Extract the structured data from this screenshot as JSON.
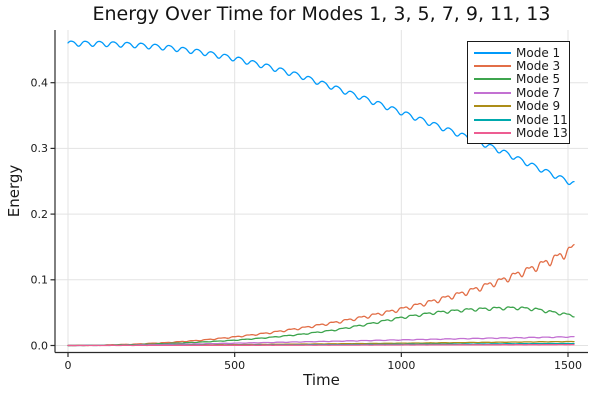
{
  "chart_data": {
    "type": "line",
    "title": "Energy Over Time for Modes 1, 3, 5, 7, 9, 11, 13",
    "xlabel": "Time",
    "ylabel": "Energy",
    "xticks": [
      0,
      500,
      1000,
      1500
    ],
    "xtick_labels": [
      "0",
      "500",
      "1000",
      "1500"
    ],
    "yticks": [
      0.0,
      0.1,
      0.2,
      0.3,
      0.4
    ],
    "ytick_labels": [
      "0.0",
      "0.1",
      "0.2",
      "0.3",
      "0.4"
    ],
    "xlim": [
      -40,
      1560
    ],
    "ylim": [
      -0.011,
      0.48
    ],
    "grid": true,
    "legend_position": "top-right",
    "t_end": 1520,
    "oscillation_note": "all curves carry a small superimposed oscillation, period ~42 time units",
    "colors": {
      "background": "#FFFFFF",
      "grid": "#E3E3E3",
      "axis": "#2B2B2B",
      "text": "#1A1A1A"
    },
    "series": [
      {
        "name": "Mode 1",
        "color": "#009AFA",
        "samples": [
          [
            0,
            0.46
          ],
          [
            100,
            0.4595
          ],
          [
            200,
            0.4575
          ],
          [
            300,
            0.4535
          ],
          [
            400,
            0.4465
          ],
          [
            500,
            0.437
          ],
          [
            600,
            0.4245
          ],
          [
            700,
            0.41
          ],
          [
            800,
            0.3925
          ],
          [
            900,
            0.374
          ],
          [
            1000,
            0.355
          ],
          [
            1100,
            0.336
          ],
          [
            1200,
            0.3165
          ],
          [
            1300,
            0.296
          ],
          [
            1400,
            0.2725
          ],
          [
            1500,
            0.25
          ],
          [
            1520,
            0.246
          ]
        ],
        "ripple": {
          "abs": 0.0038,
          "rel": 0.0,
          "period": 42,
          "skew": 0.15,
          "phase": 0.0
        }
      },
      {
        "name": "Mode 3",
        "color": "#E26E47",
        "samples": [
          [
            0,
            0.0
          ],
          [
            100,
            0.0006
          ],
          [
            200,
            0.002
          ],
          [
            300,
            0.0045
          ],
          [
            400,
            0.008
          ],
          [
            500,
            0.013
          ],
          [
            600,
            0.019
          ],
          [
            700,
            0.0265
          ],
          [
            800,
            0.035
          ],
          [
            900,
            0.0445
          ],
          [
            1000,
            0.0555
          ],
          [
            1100,
            0.068
          ],
          [
            1200,
            0.082
          ],
          [
            1300,
            0.099
          ],
          [
            1400,
            0.119
          ],
          [
            1450,
            0.13
          ],
          [
            1500,
            0.143
          ],
          [
            1520,
            0.151
          ]
        ],
        "ripple": {
          "abs": 0.0002,
          "rel": 0.038,
          "period": 42,
          "skew": 0.55,
          "phase": 2.1
        }
      },
      {
        "name": "Mode 5",
        "color": "#3DA44D",
        "samples": [
          [
            0,
            0.0
          ],
          [
            100,
            0.0004
          ],
          [
            200,
            0.0013
          ],
          [
            300,
            0.003
          ],
          [
            400,
            0.0052
          ],
          [
            500,
            0.008
          ],
          [
            600,
            0.012
          ],
          [
            700,
            0.017
          ],
          [
            800,
            0.0235
          ],
          [
            900,
            0.0325
          ],
          [
            1000,
            0.0425
          ],
          [
            1100,
            0.05
          ],
          [
            1200,
            0.0545
          ],
          [
            1300,
            0.057
          ],
          [
            1350,
            0.0572
          ],
          [
            1400,
            0.0555
          ],
          [
            1450,
            0.051
          ],
          [
            1500,
            0.047
          ],
          [
            1520,
            0.0455
          ]
        ],
        "ripple": {
          "abs": 0.0001,
          "rel": 0.032,
          "period": 42,
          "skew": 0.5,
          "phase": 4.2
        }
      },
      {
        "name": "Mode 7",
        "color": "#C371D2",
        "samples": [
          [
            0,
            0.0
          ],
          [
            200,
            0.0008
          ],
          [
            400,
            0.0025
          ],
          [
            600,
            0.0045
          ],
          [
            800,
            0.0065
          ],
          [
            1000,
            0.0085
          ],
          [
            1200,
            0.0105
          ],
          [
            1400,
            0.0122
          ],
          [
            1520,
            0.0132
          ]
        ],
        "ripple": {
          "abs": 8e-05,
          "rel": 0.035,
          "period": 42,
          "skew": 0.3,
          "phase": 1.0
        }
      },
      {
        "name": "Mode 9",
        "color": "#AC8D18",
        "samples": [
          [
            0,
            0.0
          ],
          [
            200,
            0.0003
          ],
          [
            400,
            0.0009
          ],
          [
            600,
            0.0017
          ],
          [
            800,
            0.0026
          ],
          [
            1000,
            0.0035
          ],
          [
            1200,
            0.0045
          ],
          [
            1400,
            0.0055
          ],
          [
            1520,
            0.006
          ]
        ],
        "ripple": {
          "abs": 5e-05,
          "rel": 0.03,
          "period": 42,
          "skew": 0.3,
          "phase": 3.0
        }
      },
      {
        "name": "Mode 11",
        "color": "#00A9AD",
        "samples": [
          [
            0,
            0.0
          ],
          [
            200,
            0.0002
          ],
          [
            400,
            0.0005
          ],
          [
            600,
            0.0009
          ],
          [
            800,
            0.0013
          ],
          [
            1000,
            0.0018
          ],
          [
            1200,
            0.0023
          ],
          [
            1400,
            0.0028
          ],
          [
            1520,
            0.0031
          ]
        ],
        "ripple": {
          "abs": 4e-05,
          "rel": 0.03,
          "period": 42,
          "skew": 0.3,
          "phase": 5.0
        }
      },
      {
        "name": "Mode 13",
        "color": "#ED5D92",
        "samples": [
          [
            0,
            0.0
          ],
          [
            200,
            0.0001
          ],
          [
            400,
            0.0002
          ],
          [
            600,
            0.0004
          ],
          [
            800,
            0.0006
          ],
          [
            1000,
            0.0008
          ],
          [
            1200,
            0.001
          ],
          [
            1400,
            0.0012
          ],
          [
            1520,
            0.0013
          ]
        ],
        "ripple": {
          "abs": 3e-05,
          "rel": 0.03,
          "period": 42,
          "skew": 0.3,
          "phase": 0.7
        }
      }
    ]
  }
}
